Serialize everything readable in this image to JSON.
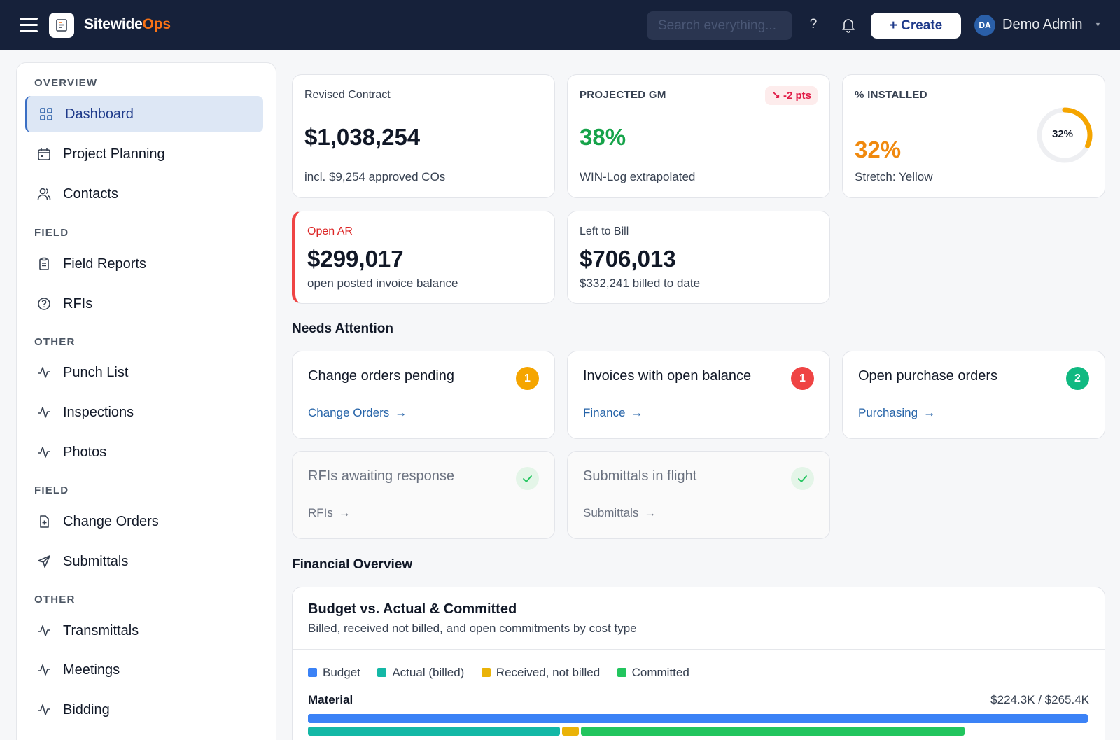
{
  "header": {
    "brand_main": "Sitewide",
    "brand_accent": "Ops",
    "search_placeholder": "Search everything...",
    "help_label": "?",
    "create_label": "+ Create",
    "user_initials": "DA",
    "user_name": "Demo Admin"
  },
  "sidebar": {
    "sections": {
      "overview": "OVERVIEW",
      "field1": "FIELD",
      "other1": "OTHER",
      "field2": "FIELD",
      "other2": "OTHER"
    },
    "items": {
      "dashboard": "Dashboard",
      "project_planning": "Project Planning",
      "contacts": "Contacts",
      "field_reports": "Field Reports",
      "rfis": "RFIs",
      "punch_list": "Punch List",
      "inspections": "Inspections",
      "photos": "Photos",
      "change_orders": "Change Orders",
      "submittals": "Submittals",
      "transmittals": "Transmittals",
      "meetings": "Meetings",
      "bidding": "Bidding"
    }
  },
  "kpis": {
    "revised_contract": {
      "label": "Revised Contract",
      "value": "$1,038,254",
      "sub": "incl. $9,254 approved COs"
    },
    "projected_gm": {
      "label": "PROJECTED GM",
      "value": "38%",
      "sub": "WIN-Log extrapolated",
      "delta": "-2 pts"
    },
    "installed": {
      "label": "% INSTALLED",
      "value": "32%",
      "sub": "Stretch: Yellow",
      "ring_text": "32%",
      "fraction": 0.32
    },
    "open_ar": {
      "label": "Open AR",
      "value": "$299,017",
      "sub": "open posted invoice balance"
    },
    "left_to_bill": {
      "label": "Left to Bill",
      "value": "$706,013",
      "sub": "$332,241 billed to date"
    }
  },
  "needs_attention": {
    "title": "Needs Attention",
    "items": [
      {
        "title": "Change orders pending",
        "count": "1",
        "link": "Change Orders",
        "color": "#f5a500"
      },
      {
        "title": "Invoices with open balance",
        "count": "1",
        "link": "Finance",
        "color": "#ef4444"
      },
      {
        "title": "Open purchase orders",
        "count": "2",
        "link": "Purchasing",
        "color": "#10b981"
      },
      {
        "title": "RFIs awaiting response",
        "link": "RFIs"
      },
      {
        "title": "Submittals in flight",
        "link": "Submittals"
      }
    ]
  },
  "financial": {
    "section_title": "Financial Overview",
    "card_title": "Budget vs. Actual & Committed",
    "card_subtitle": "Billed, received not billed, and open commitments by cost type",
    "legend": [
      {
        "label": "Budget",
        "color": "#3b82f6"
      },
      {
        "label": "Actual (billed)",
        "color": "#14b8a6"
      },
      {
        "label": "Received, not billed",
        "color": "#eab308"
      },
      {
        "label": "Committed",
        "color": "#22c55e"
      }
    ]
  },
  "chart_data": {
    "type": "bar",
    "categories": [
      "Material"
    ],
    "amount_labels": [
      "$224.3K / $265.4K"
    ],
    "series": [
      {
        "name": "Budget",
        "values": [
          265.4
        ]
      },
      {
        "name": "Actual (billed)",
        "values": [
          86.5
        ]
      },
      {
        "name": "Received, not billed",
        "values": [
          6.4
        ]
      },
      {
        "name": "Committed",
        "values": [
          131.4
        ]
      }
    ],
    "units": "$K"
  }
}
